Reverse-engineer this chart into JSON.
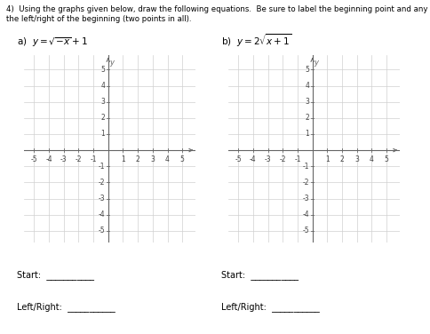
{
  "title_line1": "4)  Using the graphs given below, draw the following equations.  Be sure to label the beginning point and any point to",
  "title_line2": "the left/right of the beginning (two points in all).",
  "eq_a_label": "a)  $y = \\sqrt{-x} + 1$",
  "eq_b_label": "b)  $y = 2\\sqrt{x + 1}$",
  "xlim": [
    -5.7,
    5.9
  ],
  "ylim": [
    -5.7,
    5.9
  ],
  "xticks": [
    -5,
    -4,
    -3,
    -2,
    -1,
    1,
    2,
    3,
    4,
    5
  ],
  "yticks": [
    -5,
    -4,
    -3,
    -2,
    -1,
    1,
    2,
    3,
    4,
    5
  ],
  "grid_color": "#d0d0d0",
  "axis_color": "#666666",
  "tick_label_color": "#444444",
  "tick_fontsize": 5.5,
  "start_label": "Start:  ___________",
  "leftright_label": "Left/Right:  ___________",
  "background": "#ffffff",
  "line_color": "#000000",
  "title_fontsize": 6.2,
  "eq_fontsize": 7.5,
  "label_fontsize": 7.0
}
